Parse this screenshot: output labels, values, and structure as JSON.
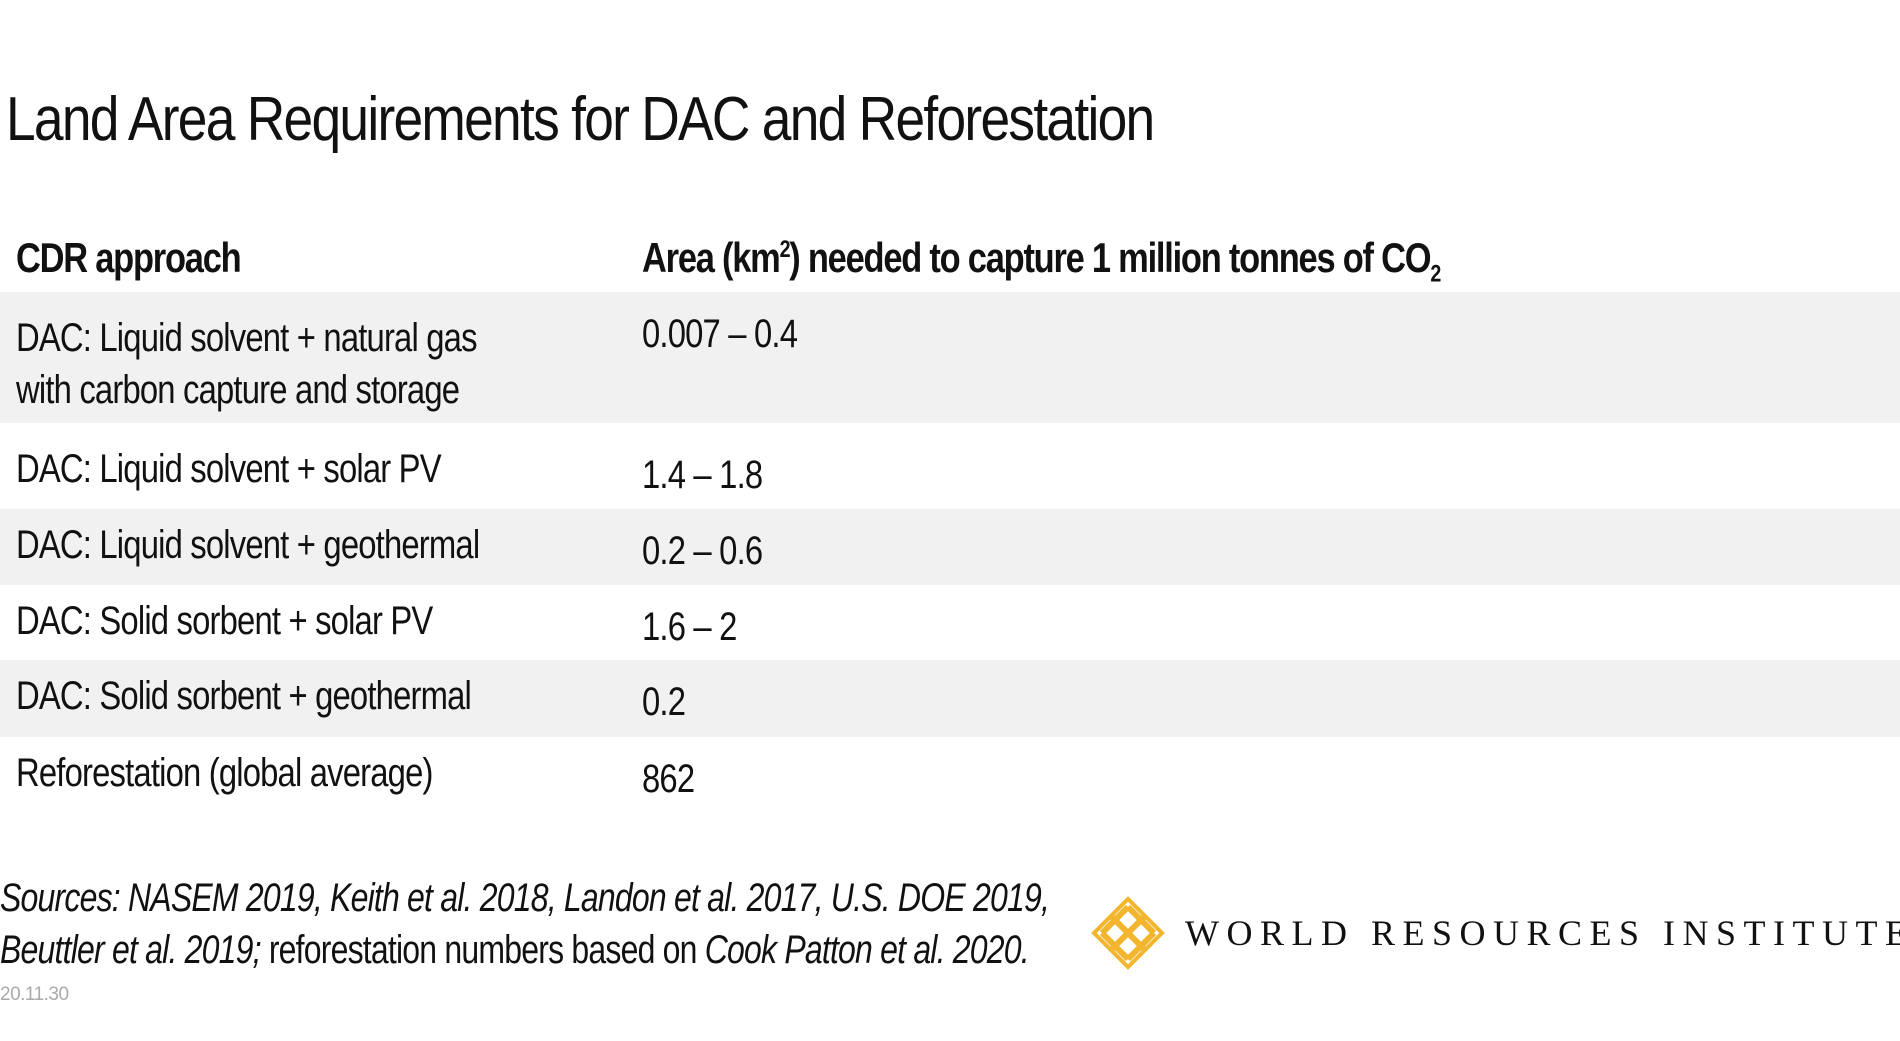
{
  "title": "Land Area Requirements for DAC and Reforestation",
  "table": {
    "headers": {
      "col1": "CDR approach",
      "col2_prefix": "Area (km",
      "col2_sup": "2",
      "col2_middle": ") needed to capture 1 million tonnes of CO",
      "col2_sub": "2"
    },
    "rows": [
      {
        "approach_line1": "DAC: Liquid solvent + natural gas",
        "approach_line2": "with carbon capture and storage",
        "area": "0.007 – 0.4"
      },
      {
        "approach_line1": "DAC: Liquid solvent + solar PV",
        "area": "1.4 – 1.8"
      },
      {
        "approach_line1": "DAC: Liquid solvent + geothermal",
        "area": "0.2 – 0.6"
      },
      {
        "approach_line1": "DAC: Solid sorbent + solar PV",
        "area": "1.6 – 2"
      },
      {
        "approach_line1": "DAC: Solid sorbent + geothermal",
        "area": "0.2"
      },
      {
        "approach_line1": "Reforestation (global average)",
        "area": "862"
      }
    ]
  },
  "sources": {
    "line1_italic": "Sources: NASEM 2019, Keith et al. 2018, Landon et al. 2017, U.S. DOE 2019,",
    "line2_italic_a": "Beuttler et al. 2019;",
    "line2_plain": " reforestation numbers based on ",
    "line2_italic_b": "Cook Patton et al. 2020."
  },
  "date": "20.11.30",
  "logo": {
    "text": "WORLD RESOURCES INSTITUTE",
    "color": "#f2b52e"
  },
  "colors": {
    "row_stripe": "#f1f1f1",
    "text": "#111111",
    "date": "#aaaaaa"
  }
}
